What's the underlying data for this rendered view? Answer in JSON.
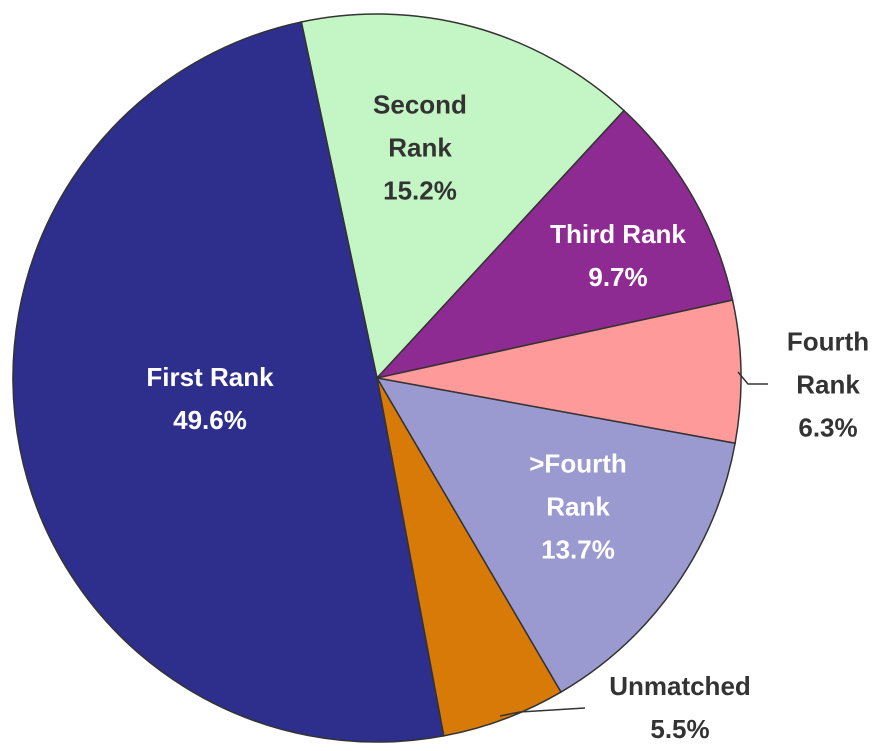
{
  "chart_data": {
    "type": "pie",
    "categories": [
      "Second Rank",
      "Third Rank",
      "Fourth Rank",
      ">Fourth Rank",
      "Unmatched",
      "First Rank"
    ],
    "values": [
      15.2,
      9.7,
      6.3,
      13.7,
      5.5,
      49.6
    ],
    "value_labels": [
      "15.2%",
      "9.7%",
      "6.3%",
      "13.7%",
      "5.5%",
      "49.6%"
    ],
    "colors": [
      "#c4f5c4",
      "#8e2b92",
      "#ff9a9a",
      "#9a9ad0",
      "#d87a08",
      "#2e2e8c"
    ]
  }
}
